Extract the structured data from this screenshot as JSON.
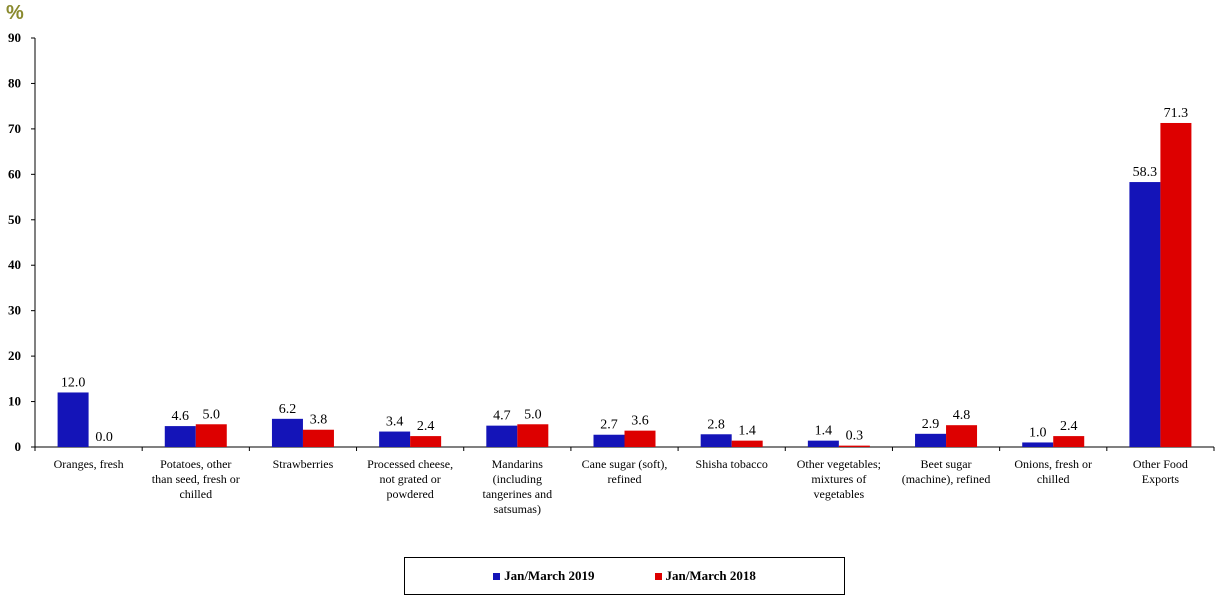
{
  "unit_label": "%",
  "colors": {
    "series1": "#1414b8",
    "series2": "#dd0000"
  },
  "chart_data": {
    "type": "bar",
    "categories": [
      "Oranges, fresh",
      "Potatoes, other than seed, fresh or chilled",
      "Strawberries",
      "Processed cheese, not grated or powdered",
      "Mandarins (including tangerines and satsumas)",
      "Cane sugar (soft), refined",
      "Shisha tobacco",
      "Other vegetables; mixtures of vegetables",
      "Beet sugar (machine), refined",
      "Onions, fresh or chilled",
      "Other Food Exports"
    ],
    "category_lines": [
      [
        "Oranges, fresh"
      ],
      [
        "Potatoes, other",
        "than seed, fresh or",
        "chilled"
      ],
      [
        "Strawberries"
      ],
      [
        "Processed cheese,",
        "not grated or",
        "powdered"
      ],
      [
        "Mandarins",
        "(including",
        "tangerines and",
        "satsumas)"
      ],
      [
        "Cane sugar (soft),",
        "refined"
      ],
      [
        "Shisha tobacco"
      ],
      [
        "Other vegetables;",
        "mixtures of",
        "vegetables"
      ],
      [
        "Beet sugar",
        "(machine), refined"
      ],
      [
        "Onions, fresh or",
        "chilled"
      ],
      [
        "Other Food",
        "Exports"
      ]
    ],
    "series": [
      {
        "name": "Jan/March  2019",
        "values": [
          12.0,
          4.6,
          6.2,
          3.4,
          4.7,
          2.7,
          2.8,
          1.4,
          2.9,
          1.0,
          58.3
        ]
      },
      {
        "name": "Jan/March  2018",
        "values": [
          0.0,
          5.0,
          3.8,
          2.4,
          5.0,
          3.6,
          1.4,
          0.3,
          4.8,
          2.4,
          71.3
        ]
      }
    ],
    "ylim": [
      0,
      90
    ],
    "yticks": [
      0,
      10,
      20,
      30,
      40,
      50,
      60,
      70,
      80,
      90
    ],
    "legend_position": "bottom"
  }
}
